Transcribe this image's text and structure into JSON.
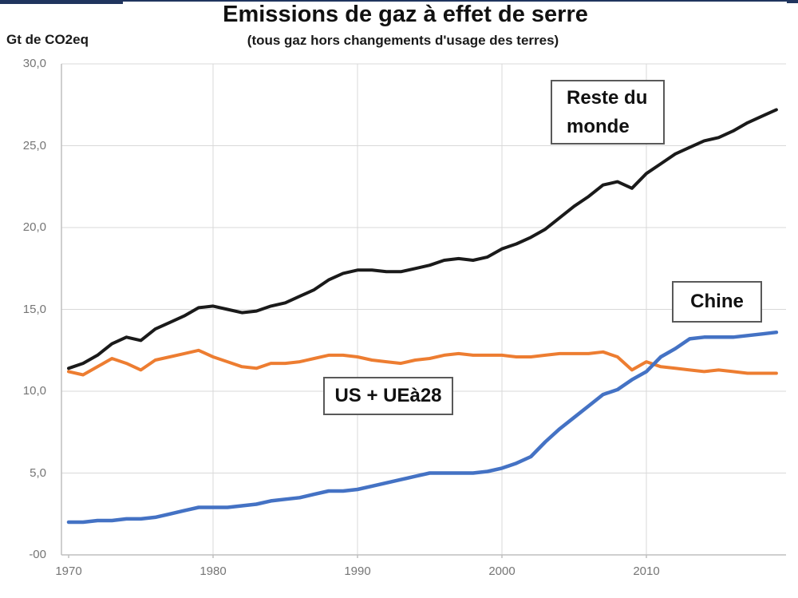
{
  "page": {
    "title": "Emissions de gaz à effet de serre",
    "subtitle": "(tous gaz hors changements d'usage des terres)",
    "y_axis_unit": "Gt de CO2eq"
  },
  "colors": {
    "rest_of_world_line": "#1a1a1a",
    "us_eu_line": "#ED7D31",
    "china_line": "#4472C4",
    "gridline": "#D9D9D9",
    "axis_line": "#BFBFBF",
    "tick_text": "#757575",
    "top_border": "#20355e",
    "annotation_border": "#595959"
  },
  "annotations": {
    "reste_du_monde": {
      "line1": "Reste du",
      "line2": "monde"
    },
    "chine": {
      "label": "Chine"
    },
    "us_ue28": {
      "label": "US + UEà28"
    }
  },
  "chart_data": {
    "type": "line",
    "title": "Emissions de gaz à effet de serre",
    "subtitle": "(tous gaz hors changements d'usage des terres)",
    "xlabel": "",
    "ylabel": "Gt de CO2eq",
    "xlim": [
      1969.5,
      2019.8
    ],
    "ylim": [
      0,
      30
    ],
    "grid": true,
    "legend_position": "in-plot text boxes",
    "x_ticks": {
      "values": [
        1970,
        1980,
        1990,
        2000,
        2010
      ],
      "labels": [
        "1970",
        "1980",
        "1990",
        "2000",
        "2010"
      ]
    },
    "y_ticks": {
      "values": [
        30,
        25,
        20,
        15,
        10,
        5,
        0
      ],
      "labels": [
        "30,0",
        "25,0",
        "20,0",
        "15,0",
        "10,0",
        "5,0",
        "-00"
      ]
    },
    "x": [
      1970,
      1971,
      1972,
      1973,
      1974,
      1975,
      1976,
      1977,
      1978,
      1979,
      1980,
      1981,
      1982,
      1983,
      1984,
      1985,
      1986,
      1987,
      1988,
      1989,
      1990,
      1991,
      1992,
      1993,
      1994,
      1995,
      1996,
      1997,
      1998,
      1999,
      2000,
      2001,
      2002,
      2003,
      2004,
      2005,
      2006,
      2007,
      2008,
      2009,
      2010,
      2011,
      2012,
      2013,
      2014,
      2015,
      2016,
      2017,
      2018,
      2019
    ],
    "series": [
      {
        "name": "Reste du monde",
        "color": "#1a1a1a",
        "values": [
          11.4,
          11.7,
          12.2,
          12.9,
          13.3,
          13.1,
          13.8,
          14.2,
          14.6,
          15.1,
          15.2,
          15.0,
          14.8,
          14.9,
          15.2,
          15.4,
          15.8,
          16.2,
          16.8,
          17.2,
          17.4,
          17.4,
          17.3,
          17.3,
          17.5,
          17.7,
          18.0,
          18.1,
          18.0,
          18.2,
          18.7,
          19.0,
          19.4,
          19.9,
          20.6,
          21.3,
          21.9,
          22.6,
          22.8,
          22.4,
          23.3,
          23.9,
          24.5,
          24.9,
          25.3,
          25.5,
          25.9,
          26.4,
          26.8,
          27.2
        ]
      },
      {
        "name": "US + UEà28",
        "color": "#ED7D31",
        "values": [
          11.2,
          11.0,
          11.5,
          12.0,
          11.7,
          11.3,
          11.9,
          12.1,
          12.3,
          12.5,
          12.1,
          11.8,
          11.5,
          11.4,
          11.7,
          11.7,
          11.8,
          12.0,
          12.2,
          12.2,
          12.1,
          11.9,
          11.8,
          11.7,
          11.9,
          12.0,
          12.2,
          12.3,
          12.2,
          12.2,
          12.2,
          12.1,
          12.1,
          12.2,
          12.3,
          12.3,
          12.3,
          12.4,
          12.1,
          11.3,
          11.8,
          11.5,
          11.4,
          11.3,
          11.2,
          11.3,
          11.2,
          11.1,
          11.1,
          11.1
        ]
      },
      {
        "name": "Chine",
        "color": "#4472C4",
        "values": [
          2.0,
          2.0,
          2.1,
          2.1,
          2.2,
          2.2,
          2.3,
          2.5,
          2.7,
          2.9,
          2.9,
          2.9,
          3.0,
          3.1,
          3.3,
          3.4,
          3.5,
          3.7,
          3.9,
          3.9,
          4.0,
          4.2,
          4.4,
          4.6,
          4.8,
          5.0,
          5.0,
          5.0,
          5.0,
          5.1,
          5.3,
          5.6,
          6.0,
          6.9,
          7.7,
          8.4,
          9.1,
          9.8,
          10.1,
          10.7,
          11.2,
          12.1,
          12.6,
          13.2,
          13.3,
          13.3,
          13.3,
          13.4,
          13.5,
          13.6
        ]
      }
    ]
  }
}
